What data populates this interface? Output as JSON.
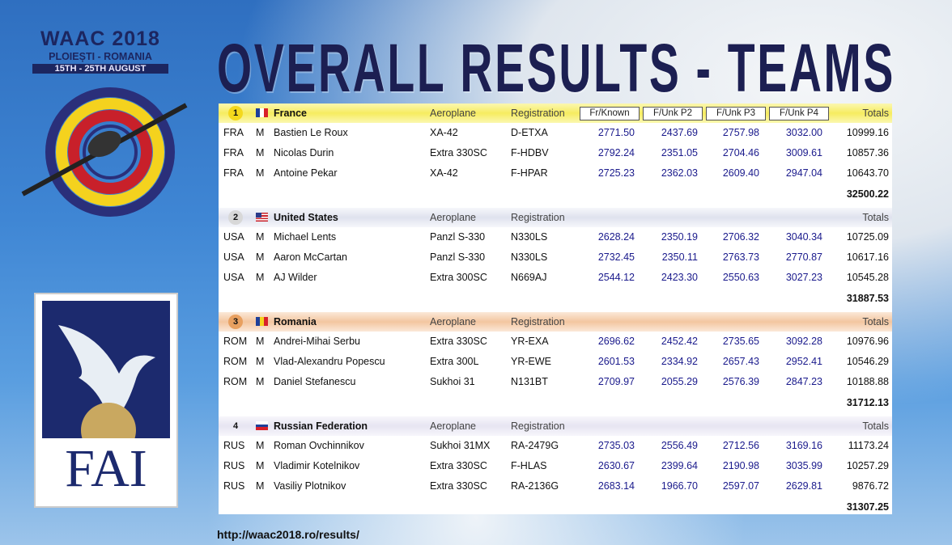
{
  "event": {
    "name": "WAAC 2018",
    "location": "PLOIEȘTI - ROMANIA",
    "dates": "15TH - 25TH AUGUST"
  },
  "title": "OVERALL RESULTS - TEAMS",
  "fai": "FAI",
  "url": "http://waac2018.ro/results/",
  "teams": [
    {
      "rank": "1",
      "name": "France",
      "aeroplane_header": "Aeroplane",
      "registration_header": "Registration",
      "columns": [
        "Fr/Known",
        "F/Unk P2",
        "F/Unk P3",
        "F/Unk P4"
      ],
      "totals_header": "Totals",
      "pilots": [
        [
          "FRA",
          "M",
          "Bastien Le Roux",
          "XA-42",
          "D-ETXA",
          "2771.50",
          "2437.69",
          "2757.98",
          "3032.00",
          "10999.16"
        ],
        [
          "FRA",
          "M",
          "Nicolas Durin",
          "Extra 330SC",
          "F-HDBV",
          "2792.24",
          "2351.05",
          "2704.46",
          "3009.61",
          "10857.36"
        ],
        [
          "FRA",
          "M",
          "Antoine Pekar",
          "XA-42",
          "F-HPAR",
          "2725.23",
          "2362.03",
          "2609.40",
          "2947.04",
          "10643.70"
        ]
      ],
      "total": "32500.22"
    },
    {
      "rank": "2",
      "name": "United States",
      "aeroplane_header": "Aeroplane",
      "registration_header": "Registration",
      "totals_header": "Totals",
      "pilots": [
        [
          "USA",
          "M",
          "Michael Lents",
          "Panzl S-330",
          "N330LS",
          "2628.24",
          "2350.19",
          "2706.32",
          "3040.34",
          "10725.09"
        ],
        [
          "USA",
          "M",
          "Aaron McCartan",
          "Panzl S-330",
          "N330LS",
          "2732.45",
          "2350.11",
          "2763.73",
          "2770.87",
          "10617.16"
        ],
        [
          "USA",
          "M",
          "AJ Wilder",
          "Extra 300SC",
          "N669AJ",
          "2544.12",
          "2423.30",
          "2550.63",
          "3027.23",
          "10545.28"
        ]
      ],
      "total": "31887.53"
    },
    {
      "rank": "3",
      "name": "Romania",
      "aeroplane_header": "Aeroplane",
      "registration_header": "Registration",
      "totals_header": "Totals",
      "pilots": [
        [
          "ROM",
          "M",
          "Andrei-Mihai Serbu",
          "Extra 330SC",
          "YR-EXA",
          "2696.62",
          "2452.42",
          "2735.65",
          "3092.28",
          "10976.96"
        ],
        [
          "ROM",
          "M",
          "Vlad-Alexandru Popescu",
          "Extra 300L",
          "YR-EWE",
          "2601.53",
          "2334.92",
          "2657.43",
          "2952.41",
          "10546.29"
        ],
        [
          "ROM",
          "M",
          "Daniel Stefanescu",
          "Sukhoi 31",
          "N131BT",
          "2709.97",
          "2055.29",
          "2576.39",
          "2847.23",
          "10188.88"
        ]
      ],
      "total": "31712.13"
    },
    {
      "rank": "4",
      "name": "Russian Federation",
      "aeroplane_header": "Aeroplane",
      "registration_header": "Registration",
      "totals_header": "Totals",
      "pilots": [
        [
          "RUS",
          "M",
          "Roman Ovchinnikov",
          "Sukhoi 31MX",
          "RA-2479G",
          "2735.03",
          "2556.49",
          "2712.56",
          "3169.16",
          "11173.24"
        ],
        [
          "RUS",
          "M",
          "Vladimir Kotelnikov",
          "Extra 330SC",
          "F-HLAS",
          "2630.67",
          "2399.64",
          "2190.98",
          "3035.99",
          "10257.29"
        ],
        [
          "RUS",
          "M",
          "Vasiliy Plotnikov",
          "Extra 330SC",
          "RA-2136G",
          "2683.14",
          "1966.70",
          "2597.07",
          "2629.81",
          "9876.72"
        ]
      ],
      "total": "31307.25"
    }
  ]
}
